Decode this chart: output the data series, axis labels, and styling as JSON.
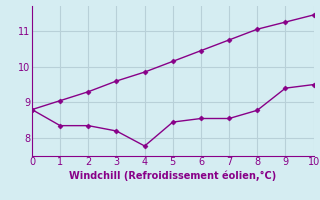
{
  "line1_x": [
    0,
    1,
    2,
    3,
    4,
    5,
    6,
    7,
    8,
    9,
    10
  ],
  "line1_y": [
    8.8,
    9.05,
    9.3,
    9.6,
    9.85,
    10.15,
    10.45,
    10.75,
    11.05,
    11.25,
    11.45
  ],
  "line2_x": [
    0,
    1,
    2,
    3,
    4,
    5,
    6,
    7,
    8,
    9,
    10
  ],
  "line2_y": [
    8.8,
    8.35,
    8.35,
    8.2,
    7.78,
    8.45,
    8.55,
    8.55,
    8.78,
    9.4,
    9.5
  ],
  "line_color": "#880088",
  "markersize": 2.5,
  "xlabel": "Windchill (Refroidissement éolien,°C)",
  "xlim": [
    0,
    10
  ],
  "ylim": [
    7.5,
    11.7
  ],
  "yticks": [
    8,
    9,
    10,
    11
  ],
  "xticks": [
    0,
    1,
    2,
    3,
    4,
    5,
    6,
    7,
    8,
    9,
    10
  ],
  "bg_color": "#d5edf2",
  "grid_color": "#b8d0d8",
  "linewidth": 1.0,
  "tick_fontsize": 7,
  "xlabel_fontsize": 7
}
